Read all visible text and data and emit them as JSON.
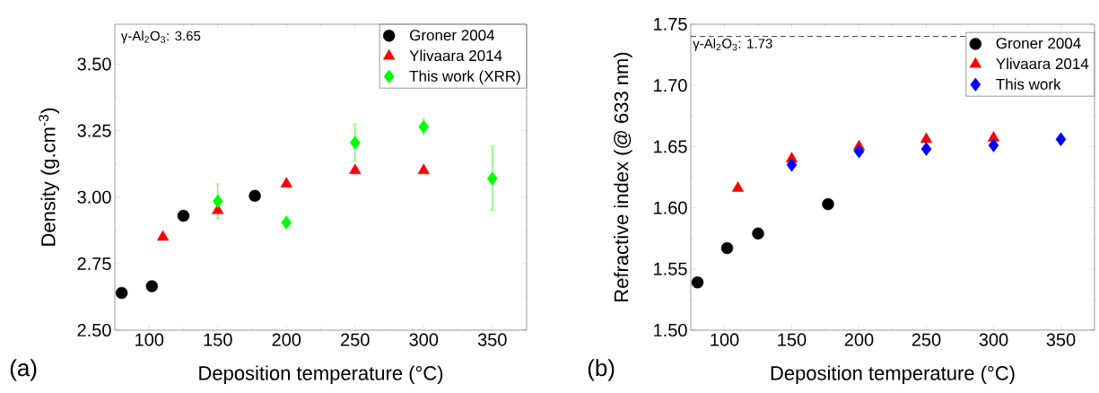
{
  "chart_data": [
    {
      "type": "scatter",
      "xlabel": "Deposition temperature (°C)",
      "ylabel": "Density (g.cm$^{-3}$)",
      "xlim": [
        75,
        375
      ],
      "ylim": [
        2.5,
        3.65
      ],
      "xticks": [
        100,
        150,
        200,
        250,
        300,
        350
      ],
      "yticks": [
        {
          "value": 2.5,
          "label": "2.50"
        },
        {
          "value": 2.75,
          "label": "2.75"
        },
        {
          "value": 3.0,
          "label": "3.00"
        },
        {
          "value": 3.25,
          "label": "3.25"
        },
        {
          "value": 3.5,
          "label": "3.50"
        }
      ],
      "legend": "top right",
      "annotations": [
        "γ-Al$_{2}$O$_{3}$: 3.65",
        "(a)"
      ],
      "series": [
        {
          "name": "Groner 2004",
          "color": "#000000",
          "marker": "circle",
          "x": [
            80,
            102,
            125,
            177
          ],
          "values": [
            2.64,
            2.665,
            2.93,
            3.005
          ]
        },
        {
          "name": "Ylivaara 2014",
          "color": "#ff0000",
          "marker": "triangle",
          "x": [
            110,
            150,
            200,
            250,
            300
          ],
          "values": [
            2.85,
            2.95,
            3.05,
            3.1,
            3.1
          ]
        },
        {
          "name": "This work (XRR)",
          "color": "#00ff00",
          "marker": "diamond",
          "x": [
            150,
            200,
            250,
            300,
            350
          ],
          "values": [
            2.985,
            2.905,
            3.205,
            3.265,
            3.07
          ],
          "errors": [
            0.065,
            null,
            0.07,
            0.03,
            0.12
          ]
        }
      ]
    },
    {
      "type": "scatter",
      "xlabel": "Deposition temperature (°C)",
      "ylabel": "Refractive index (@ 633 nm)",
      "xlim": [
        75,
        375
      ],
      "ylim": [
        1.5,
        1.75
      ],
      "xticks": [
        100,
        150,
        200,
        250,
        300,
        350
      ],
      "yticks": [
        {
          "value": 1.5,
          "label": "1.50"
        },
        {
          "value": 1.55,
          "label": "1.55"
        },
        {
          "value": 1.6,
          "label": "1.60"
        },
        {
          "value": 1.65,
          "label": "1.65"
        },
        {
          "value": 1.7,
          "label": "1.70"
        },
        {
          "value": 1.75,
          "label": "1.75"
        }
      ],
      "legend": "top right",
      "ref_lines": [
        {
          "axis": "y",
          "value": 1.74,
          "label": "γ-Al$_{2}$O$_{3}$: 1.73",
          "line_style": "dashed",
          "color": "#000000"
        }
      ],
      "annotations": [
        "(b)"
      ],
      "series": [
        {
          "name": "Groner 2004",
          "color": "#000000",
          "marker": "circle",
          "x": [
            80,
            102,
            125,
            177
          ],
          "values": [
            1.539,
            1.567,
            1.579,
            1.603
          ]
        },
        {
          "name": "Ylivaara 2014",
          "color": "#ff0000",
          "marker": "triangle",
          "x": [
            110,
            150,
            200,
            250,
            300
          ],
          "values": [
            1.616,
            1.64,
            1.65,
            1.656,
            1.657
          ]
        },
        {
          "name": "This work",
          "color": "#0000ff",
          "marker": "diamond",
          "x": [
            150,
            200,
            250,
            300,
            350
          ],
          "values": [
            1.635,
            1.646,
            1.648,
            1.651,
            1.656
          ]
        }
      ]
    }
  ]
}
